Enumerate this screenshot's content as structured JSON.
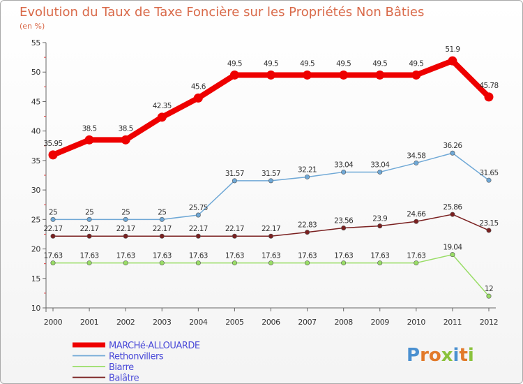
{
  "chart_data": {
    "type": "line",
    "title": "Evolution du Taux de Taxe Foncière sur les Propriétés Non Bâties",
    "subtitle": "(en %)",
    "x": [
      2000,
      2001,
      2002,
      2003,
      2004,
      2005,
      2006,
      2007,
      2008,
      2009,
      2010,
      2011,
      2012
    ],
    "ylim": [
      10,
      55
    ],
    "yticks": [
      10,
      15,
      20,
      25,
      30,
      35,
      40,
      45,
      50,
      55
    ],
    "grid": false,
    "legend_position": "bottom-left",
    "series": [
      {
        "name": "MARCHé-ALLOUARDE",
        "color": "#ee0000",
        "values": [
          35.95,
          38.5,
          38.5,
          42.35,
          45.6,
          49.5,
          49.5,
          49.5,
          49.5,
          49.5,
          49.5,
          51.9,
          45.78
        ],
        "labels": [
          "35.95",
          "38.5",
          "38.5",
          "42.35",
          "45.6",
          "49.5",
          "49.5",
          "49.5",
          "49.5",
          "49.5",
          "49.5",
          "51.9",
          "45.78"
        ]
      },
      {
        "name": "Rethonvillers",
        "color": "#6fa8d6",
        "values": [
          25,
          25,
          25,
          25,
          25.75,
          31.57,
          31.57,
          32.21,
          33.04,
          33.04,
          34.58,
          36.26,
          31.65
        ],
        "labels": [
          "25",
          "25",
          "25",
          "25",
          "25.75",
          "31.57",
          "31.57",
          "32.21",
          "33.04",
          "33.04",
          "34.58",
          "36.26",
          "31.65"
        ]
      },
      {
        "name": "Biarre",
        "color": "#99dd66",
        "values": [
          17.63,
          17.63,
          17.63,
          17.63,
          17.63,
          17.63,
          17.63,
          17.63,
          17.63,
          17.63,
          17.63,
          19.04,
          12
        ],
        "labels": [
          "17.63",
          "17.63",
          "17.63",
          "17.63",
          "17.63",
          "17.63",
          "17.63",
          "17.63",
          "17.63",
          "17.63",
          "17.63",
          "19.04",
          "12"
        ]
      },
      {
        "name": "Balâtre",
        "color": "#7a2020",
        "values": [
          22.17,
          22.17,
          22.17,
          22.17,
          22.17,
          22.17,
          22.17,
          22.83,
          23.56,
          23.9,
          24.66,
          25.86,
          23.15
        ],
        "labels": [
          "22.17",
          "22.17",
          "22.17",
          "22.17",
          "22.17",
          "22.17",
          "22.17",
          "22.83",
          "23.56",
          "23.9",
          "24.66",
          "25.86",
          "23.15"
        ]
      }
    ]
  },
  "logo": {
    "text": "Proxiti",
    "letter_colors": [
      "#4a90d0",
      "#e27a2a",
      "#e27a2a",
      "#8ac23c",
      "#4a90d0",
      "#e27a2a",
      "#8ac23c"
    ]
  }
}
